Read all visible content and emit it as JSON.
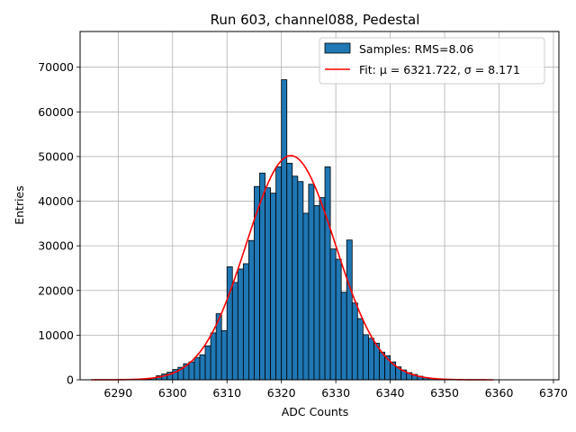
{
  "chart_data": {
    "type": "bar",
    "title": "Run 603, channel088, Pedestal",
    "xlabel": "ADC Counts",
    "ylabel": "Entries",
    "xlim": [
      6283,
      6371
    ],
    "ylim": [
      0,
      78000
    ],
    "xticks": [
      6290,
      6300,
      6310,
      6320,
      6330,
      6340,
      6350,
      6360,
      6370
    ],
    "yticks": [
      0,
      10000,
      20000,
      30000,
      40000,
      50000,
      60000,
      70000
    ],
    "grid": true,
    "legend_position": "top-right",
    "histogram": {
      "name": "Samples: RMS=8.06",
      "color": "#1f77b4",
      "edgecolor": "#000000",
      "bin_width": 1,
      "bins": [
        [
          6295,
          200
        ],
        [
          6296,
          400
        ],
        [
          6297,
          900
        ],
        [
          6298,
          1300
        ],
        [
          6299,
          1700
        ],
        [
          6300,
          2300
        ],
        [
          6301,
          2800
        ],
        [
          6302,
          3600
        ],
        [
          6303,
          4000
        ],
        [
          6304,
          5000
        ],
        [
          6305,
          5600
        ],
        [
          6306,
          7600
        ],
        [
          6307,
          10500
        ],
        [
          6308,
          14800
        ],
        [
          6309,
          11000
        ],
        [
          6310,
          25300
        ],
        [
          6311,
          21800
        ],
        [
          6312,
          24800
        ],
        [
          6313,
          26000
        ],
        [
          6314,
          31200
        ],
        [
          6315,
          43300
        ],
        [
          6316,
          46300
        ],
        [
          6317,
          43000
        ],
        [
          6318,
          41800
        ],
        [
          6319,
          47700
        ],
        [
          6320,
          67200
        ],
        [
          6321,
          48500
        ],
        [
          6322,
          45600
        ],
        [
          6323,
          44400
        ],
        [
          6324,
          37300
        ],
        [
          6325,
          43800
        ],
        [
          6326,
          39000
        ],
        [
          6327,
          40800
        ],
        [
          6328,
          47700
        ],
        [
          6329,
          29300
        ],
        [
          6330,
          27000
        ],
        [
          6331,
          19600
        ],
        [
          6332,
          31300
        ],
        [
          6333,
          17200
        ],
        [
          6334,
          13700
        ],
        [
          6335,
          10100
        ],
        [
          6336,
          9300
        ],
        [
          6337,
          8200
        ],
        [
          6338,
          6200
        ],
        [
          6339,
          5400
        ],
        [
          6340,
          4000
        ],
        [
          6341,
          2900
        ],
        [
          6342,
          2200
        ],
        [
          6343,
          1600
        ],
        [
          6344,
          1200
        ],
        [
          6345,
          800
        ],
        [
          6346,
          500
        ],
        [
          6347,
          300
        ],
        [
          6348,
          200
        ],
        [
          6349,
          100
        ]
      ]
    },
    "fit": {
      "name": "Fit: μ = 6321.722, σ = 8.171",
      "color": "#ff0000",
      "mu": 6321.722,
      "sigma": 8.171,
      "amplitude": 50200,
      "x_range": [
        6285,
        6359
      ]
    }
  }
}
